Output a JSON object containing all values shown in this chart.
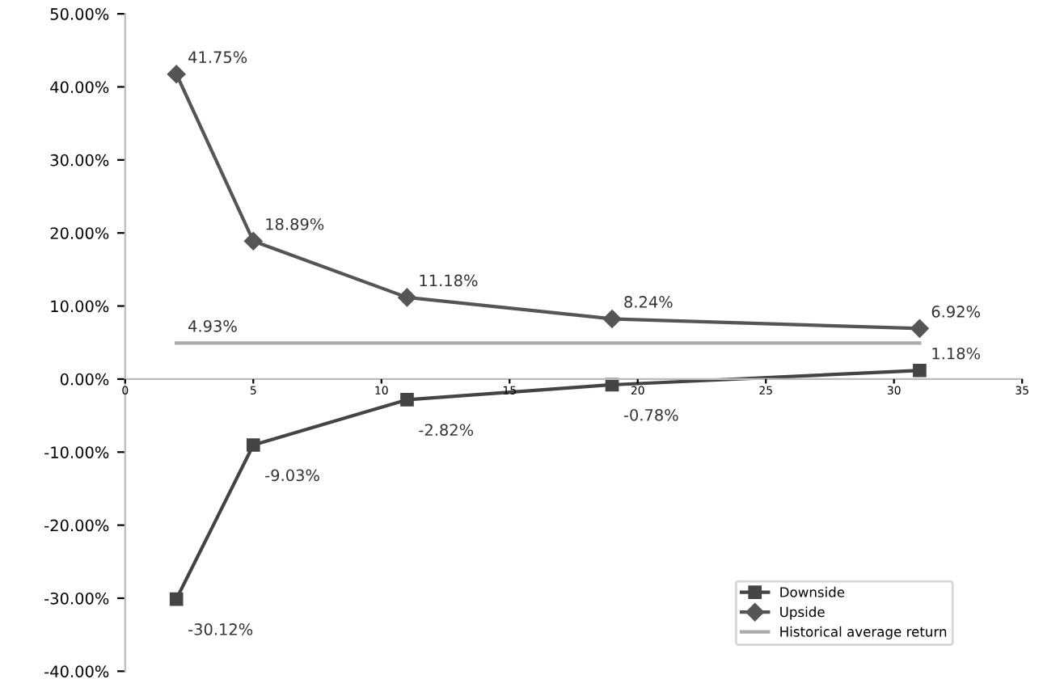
{
  "chart_data": {
    "type": "line",
    "x": [
      2,
      5,
      11,
      19,
      31
    ],
    "series": [
      {
        "name": "Downside",
        "color": "#444444",
        "marker": "square",
        "values": [
          -30.12,
          -9.03,
          -2.82,
          -0.78,
          1.18
        ],
        "value_labels": [
          "-30.12%",
          "-9.03%",
          "-2.82%",
          "-0.78%",
          "1.18%"
        ]
      },
      {
        "name": "Upside",
        "color": "#555555",
        "marker": "diamond",
        "values": [
          41.75,
          18.89,
          11.18,
          8.24,
          6.92
        ],
        "value_labels": [
          "41.75%",
          "18.89%",
          "11.18%",
          "8.24%",
          "6.92%"
        ]
      },
      {
        "name": "Historical average return",
        "color": "#aaaaaa",
        "marker": "none",
        "x": [
          2,
          31
        ],
        "values": [
          4.93,
          4.93
        ],
        "value_labels": [
          "4.93%",
          null
        ]
      }
    ],
    "xlim": [
      0,
      35
    ],
    "xticks": [
      0,
      5,
      10,
      15,
      20,
      25,
      30,
      35
    ],
    "ylim": [
      -40,
      50
    ],
    "yticks": [
      {
        "value": -40,
        "label": "-40.00%"
      },
      {
        "value": -30,
        "label": "-30.00%"
      },
      {
        "value": -20,
        "label": "-20.00%"
      },
      {
        "value": -10,
        "label": "-10.00%"
      },
      {
        "value": 0,
        "label": "0.00%"
      },
      {
        "value": 10,
        "label": "10.00%"
      },
      {
        "value": 20,
        "label": "20.00%"
      },
      {
        "value": 30,
        "label": "30.00%"
      },
      {
        "value": 40,
        "label": "40.00%"
      },
      {
        "value": 50,
        "label": "50.00%"
      }
    ],
    "grid": false,
    "legend": "bottom right"
  }
}
